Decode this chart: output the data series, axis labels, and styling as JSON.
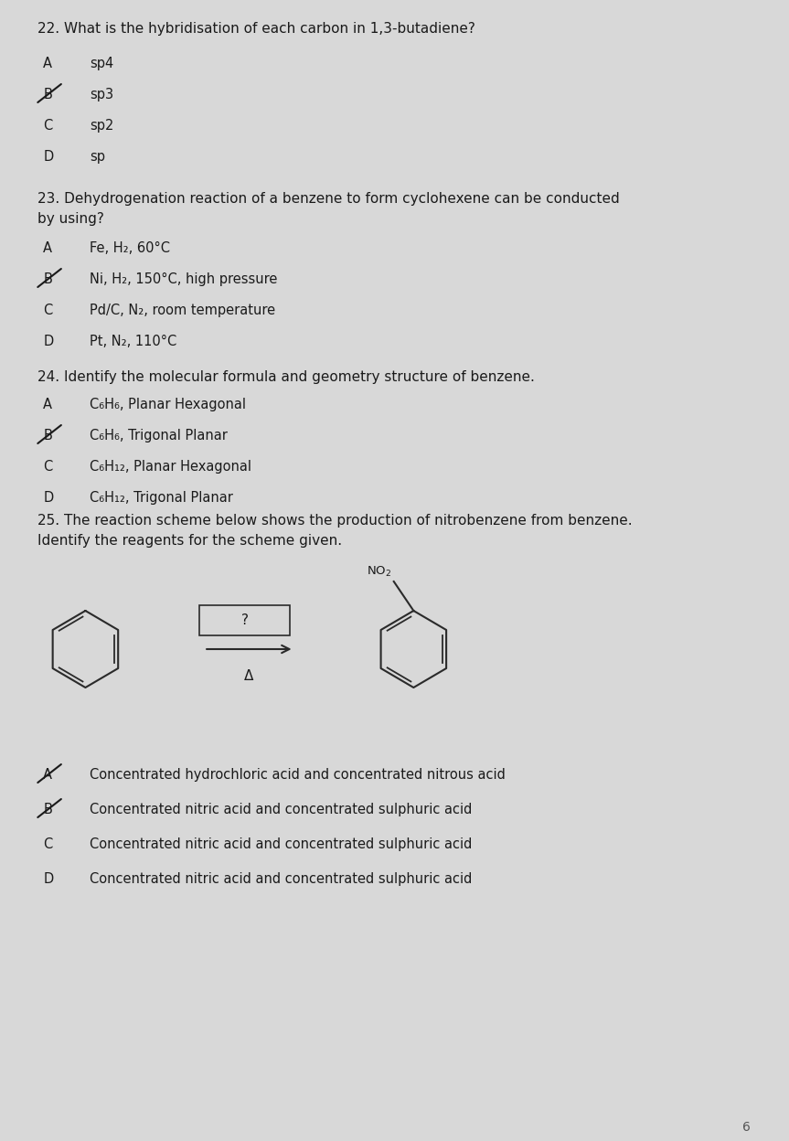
{
  "bg_color": "#d8d8d8",
  "text_color": "#1a1a1a",
  "q22": {
    "question": "22. What is the hybridisation of each carbon in 1,3-butadiene?",
    "options": [
      {
        "label": "A",
        "text": "sp4",
        "struck": false
      },
      {
        "label": "B",
        "text": "sp3",
        "struck": true
      },
      {
        "label": "C",
        "text": "sp2",
        "struck": false
      },
      {
        "label": "D",
        "text": "sp",
        "struck": false
      }
    ]
  },
  "q23": {
    "question_line1": "23. Dehydrogenation reaction of a benzene to form cyclohexene can be conducted",
    "question_line2": "by using?",
    "options": [
      {
        "label": "A",
        "text": "Fe, H₂, 60°C",
        "struck": false
      },
      {
        "label": "B",
        "text": "Ni, H₂, 150°C, high pressure",
        "struck": true
      },
      {
        "label": "C",
        "text": "Pd/C, N₂, room temperature",
        "struck": false
      },
      {
        "label": "D",
        "text": "Pt, N₂, 110°C",
        "struck": false
      }
    ]
  },
  "q24": {
    "question": "24. Identify the molecular formula and geometry structure of benzene.",
    "options": [
      {
        "label": "A",
        "text": "C₆H₆, Planar Hexagonal",
        "struck": false
      },
      {
        "label": "B",
        "text": "C₆H₆, Trigonal Planar",
        "struck": true
      },
      {
        "label": "C",
        "text": "C₆H₁₂, Planar Hexagonal",
        "struck": false
      },
      {
        "label": "D",
        "text": "C₆H₁₂, Trigonal Planar",
        "struck": false
      }
    ]
  },
  "q25": {
    "question_line1": "25. The reaction scheme below shows the production of nitrobenzene from benzene.",
    "question_line2": "Identify the reagents for the scheme given.",
    "options": [
      {
        "label": "A",
        "text": "Concentrated hydrochloric acid and concentrated nitrous acid",
        "struck": true
      },
      {
        "label": "B",
        "text": "Concentrated nitric acid and concentrated sulphuric acid",
        "struck": true
      },
      {
        "label": "C",
        "text": "Concentrated nitric acid and concentrated sulphuric acid",
        "struck": false
      },
      {
        "label": "D",
        "text": "Concentrated nitric acid and concentrated sulphuric acid",
        "struck": false
      }
    ]
  }
}
